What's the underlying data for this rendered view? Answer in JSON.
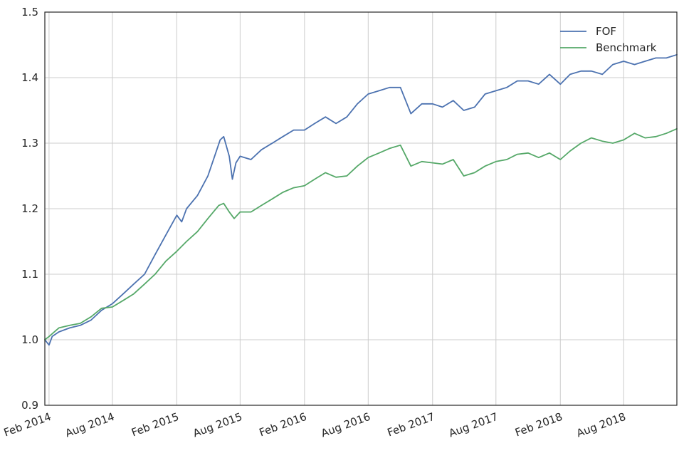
{
  "chart_data": {
    "type": "line",
    "title": "",
    "xlabel": "",
    "ylabel": "",
    "xlim": [
      "2014-01-20",
      "2018-12-31"
    ],
    "ylim": [
      0.9,
      1.5
    ],
    "x_ticks": [
      {
        "date": "2014-02-01",
        "label": "Feb 2014"
      },
      {
        "date": "2014-08-01",
        "label": "Aug 2014"
      },
      {
        "date": "2015-02-01",
        "label": "Feb 2015"
      },
      {
        "date": "2015-08-01",
        "label": "Aug 2015"
      },
      {
        "date": "2016-02-01",
        "label": "Feb 2016"
      },
      {
        "date": "2016-08-01",
        "label": "Aug 2016"
      },
      {
        "date": "2017-02-01",
        "label": "Feb 2017"
      },
      {
        "date": "2017-08-01",
        "label": "Aug 2017"
      },
      {
        "date": "2018-02-01",
        "label": "Feb 2018"
      },
      {
        "date": "2018-08-01",
        "label": "Aug 2018"
      }
    ],
    "y_ticks": [
      0.9,
      1.0,
      1.1,
      1.2,
      1.3,
      1.4,
      1.5
    ],
    "grid": true,
    "legend_position": "top-right",
    "series": [
      {
        "name": "FOF",
        "color": "#4c72b0",
        "points": [
          [
            "2014-01-20",
            1.0
          ],
          [
            "2014-02-01",
            0.992
          ],
          [
            "2014-02-10",
            1.005
          ],
          [
            "2014-03-01",
            1.012
          ],
          [
            "2014-04-01",
            1.018
          ],
          [
            "2014-05-01",
            1.022
          ],
          [
            "2014-06-01",
            1.03
          ],
          [
            "2014-07-01",
            1.045
          ],
          [
            "2014-08-01",
            1.055
          ],
          [
            "2014-09-01",
            1.07
          ],
          [
            "2014-10-01",
            1.085
          ],
          [
            "2014-11-01",
            1.1
          ],
          [
            "2014-12-01",
            1.13
          ],
          [
            "2015-01-01",
            1.16
          ],
          [
            "2015-02-01",
            1.19
          ],
          [
            "2015-02-15",
            1.18
          ],
          [
            "2015-03-01",
            1.2
          ],
          [
            "2015-04-01",
            1.22
          ],
          [
            "2015-05-01",
            1.25
          ],
          [
            "2015-05-20",
            1.28
          ],
          [
            "2015-06-05",
            1.305
          ],
          [
            "2015-06-15",
            1.31
          ],
          [
            "2015-07-01",
            1.28
          ],
          [
            "2015-07-10",
            1.245
          ],
          [
            "2015-07-20",
            1.27
          ],
          [
            "2015-08-01",
            1.28
          ],
          [
            "2015-09-01",
            1.275
          ],
          [
            "2015-10-01",
            1.29
          ],
          [
            "2015-11-01",
            1.3
          ],
          [
            "2015-12-01",
            1.31
          ],
          [
            "2016-01-01",
            1.32
          ],
          [
            "2016-02-01",
            1.32
          ],
          [
            "2016-03-01",
            1.33
          ],
          [
            "2016-04-01",
            1.34
          ],
          [
            "2016-05-01",
            1.33
          ],
          [
            "2016-06-01",
            1.34
          ],
          [
            "2016-07-01",
            1.36
          ],
          [
            "2016-08-01",
            1.375
          ],
          [
            "2016-09-01",
            1.38
          ],
          [
            "2016-10-01",
            1.385
          ],
          [
            "2016-11-01",
            1.385
          ],
          [
            "2016-12-01",
            1.345
          ],
          [
            "2017-01-01",
            1.36
          ],
          [
            "2017-02-01",
            1.36
          ],
          [
            "2017-03-01",
            1.355
          ],
          [
            "2017-04-01",
            1.365
          ],
          [
            "2017-05-01",
            1.35
          ],
          [
            "2017-06-01",
            1.355
          ],
          [
            "2017-07-01",
            1.375
          ],
          [
            "2017-08-01",
            1.38
          ],
          [
            "2017-09-01",
            1.385
          ],
          [
            "2017-10-01",
            1.395
          ],
          [
            "2017-11-01",
            1.395
          ],
          [
            "2017-12-01",
            1.39
          ],
          [
            "2018-01-01",
            1.405
          ],
          [
            "2018-02-01",
            1.39
          ],
          [
            "2018-03-01",
            1.405
          ],
          [
            "2018-04-01",
            1.41
          ],
          [
            "2018-05-01",
            1.41
          ],
          [
            "2018-06-01",
            1.405
          ],
          [
            "2018-07-01",
            1.42
          ],
          [
            "2018-08-01",
            1.425
          ],
          [
            "2018-09-01",
            1.42
          ],
          [
            "2018-10-01",
            1.425
          ],
          [
            "2018-11-01",
            1.43
          ],
          [
            "2018-12-01",
            1.43
          ],
          [
            "2018-12-31",
            1.435
          ]
        ]
      },
      {
        "name": "Benchmark",
        "color": "#55a868",
        "points": [
          [
            "2014-01-20",
            1.0
          ],
          [
            "2014-02-01",
            1.005
          ],
          [
            "2014-03-01",
            1.018
          ],
          [
            "2014-04-01",
            1.022
          ],
          [
            "2014-05-01",
            1.025
          ],
          [
            "2014-06-01",
            1.035
          ],
          [
            "2014-07-01",
            1.048
          ],
          [
            "2014-08-01",
            1.05
          ],
          [
            "2014-09-01",
            1.06
          ],
          [
            "2014-10-01",
            1.07
          ],
          [
            "2014-11-01",
            1.085
          ],
          [
            "2014-12-01",
            1.1
          ],
          [
            "2015-01-01",
            1.12
          ],
          [
            "2015-02-01",
            1.135
          ],
          [
            "2015-03-01",
            1.15
          ],
          [
            "2015-04-01",
            1.165
          ],
          [
            "2015-05-01",
            1.185
          ],
          [
            "2015-06-01",
            1.205
          ],
          [
            "2015-06-15",
            1.208
          ],
          [
            "2015-07-01",
            1.195
          ],
          [
            "2015-07-15",
            1.185
          ],
          [
            "2015-08-01",
            1.195
          ],
          [
            "2015-09-01",
            1.195
          ],
          [
            "2015-10-01",
            1.205
          ],
          [
            "2015-11-01",
            1.215
          ],
          [
            "2015-12-01",
            1.225
          ],
          [
            "2016-01-01",
            1.232
          ],
          [
            "2016-02-01",
            1.235
          ],
          [
            "2016-03-01",
            1.245
          ],
          [
            "2016-04-01",
            1.255
          ],
          [
            "2016-05-01",
            1.248
          ],
          [
            "2016-06-01",
            1.25
          ],
          [
            "2016-07-01",
            1.265
          ],
          [
            "2016-08-01",
            1.278
          ],
          [
            "2016-09-01",
            1.285
          ],
          [
            "2016-10-01",
            1.292
          ],
          [
            "2016-11-01",
            1.297
          ],
          [
            "2016-12-01",
            1.265
          ],
          [
            "2017-01-01",
            1.272
          ],
          [
            "2017-02-01",
            1.27
          ],
          [
            "2017-03-01",
            1.268
          ],
          [
            "2017-04-01",
            1.275
          ],
          [
            "2017-05-01",
            1.25
          ],
          [
            "2017-06-01",
            1.255
          ],
          [
            "2017-07-01",
            1.265
          ],
          [
            "2017-08-01",
            1.272
          ],
          [
            "2017-09-01",
            1.275
          ],
          [
            "2017-10-01",
            1.283
          ],
          [
            "2017-11-01",
            1.285
          ],
          [
            "2017-12-01",
            1.278
          ],
          [
            "2018-01-01",
            1.285
          ],
          [
            "2018-02-01",
            1.275
          ],
          [
            "2018-03-01",
            1.288
          ],
          [
            "2018-04-01",
            1.3
          ],
          [
            "2018-05-01",
            1.308
          ],
          [
            "2018-06-01",
            1.303
          ],
          [
            "2018-07-01",
            1.3
          ],
          [
            "2018-08-01",
            1.305
          ],
          [
            "2018-09-01",
            1.315
          ],
          [
            "2018-10-01",
            1.308
          ],
          [
            "2018-11-01",
            1.31
          ],
          [
            "2018-12-01",
            1.315
          ],
          [
            "2018-12-31",
            1.322
          ]
        ]
      }
    ]
  }
}
